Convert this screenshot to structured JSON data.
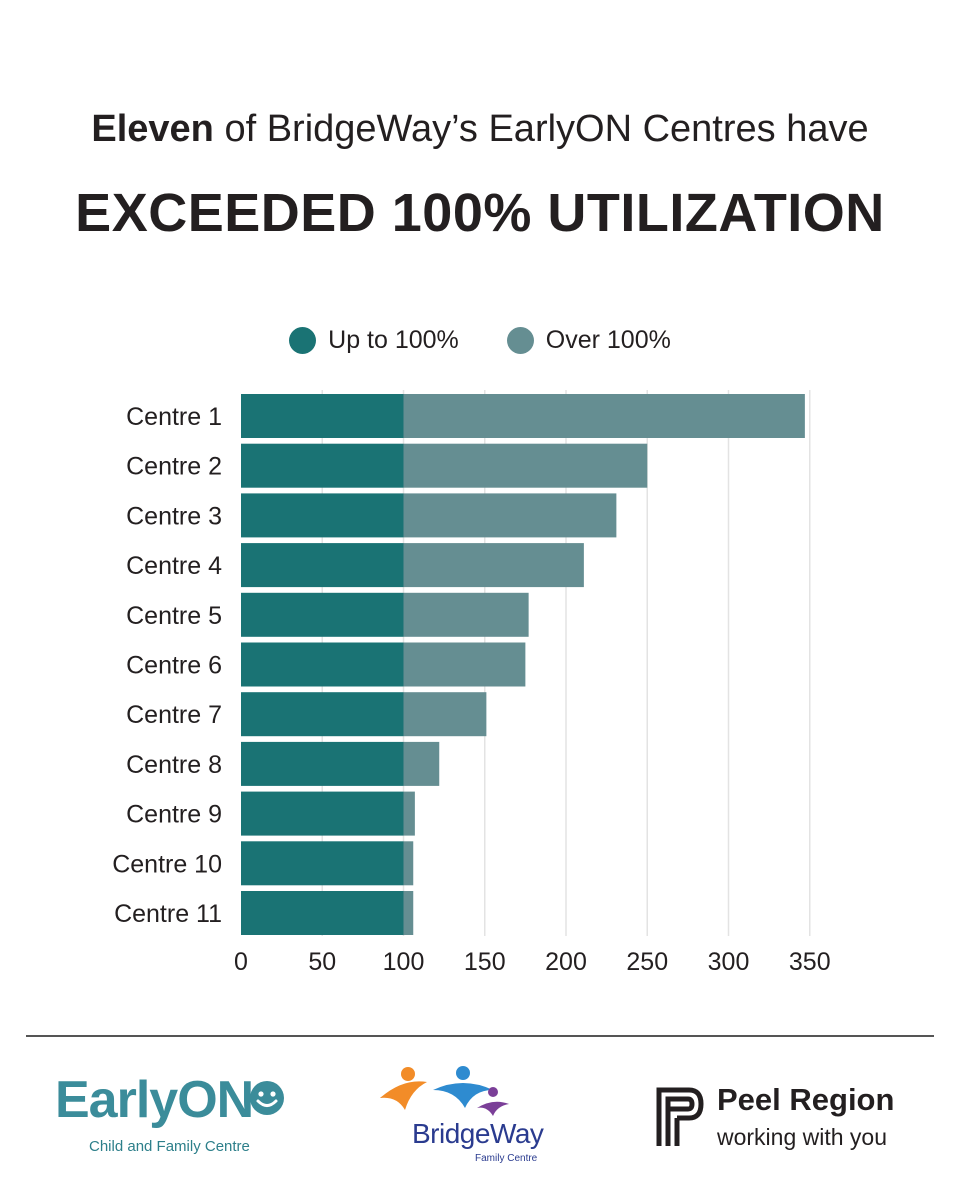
{
  "headline": {
    "bold_part": "Eleven",
    "rest": " of BridgeWay’s EarlyON Centres have",
    "subhead": "EXCEEDED 100% UTILIZATION"
  },
  "colors": {
    "up_to_100": "#1a7374",
    "over_100": "#658e92",
    "grid": "#e3e3e3",
    "text": "#231f20"
  },
  "chart_data": {
    "type": "bar",
    "orientation": "horizontal",
    "stacked": true,
    "title": "EXCEEDED 100% UTILIZATION",
    "xlabel": "",
    "ylabel": "",
    "xlim": [
      0,
      350
    ],
    "xticks": [
      0,
      50,
      100,
      150,
      200,
      250,
      300,
      350
    ],
    "grid": true,
    "legend_position": "top-center",
    "categories": [
      "Centre 1",
      "Centre 2",
      "Centre 3",
      "Centre 4",
      "Centre 5",
      "Centre 6",
      "Centre 7",
      "Centre 8",
      "Centre 9",
      "Centre 10",
      "Centre 11"
    ],
    "totals": [
      347,
      250,
      231,
      211,
      177,
      175,
      151,
      122,
      107,
      106,
      106
    ],
    "series": [
      {
        "name": "Up to 100%",
        "values": [
          100,
          100,
          100,
          100,
          100,
          100,
          100,
          100,
          100,
          100,
          100
        ]
      },
      {
        "name": "Over 100%",
        "values": [
          247,
          150,
          131,
          111,
          77,
          75,
          51,
          22,
          7,
          6,
          6
        ]
      }
    ]
  },
  "logos": {
    "earlyon": {
      "name": "EarlyON",
      "subtitle": "Child and Family Centre"
    },
    "bridgeway": {
      "name": "BridgeWay",
      "subtitle": "Family Centre"
    },
    "peel": {
      "name": "Peel Region",
      "tagline": "working with you"
    }
  }
}
